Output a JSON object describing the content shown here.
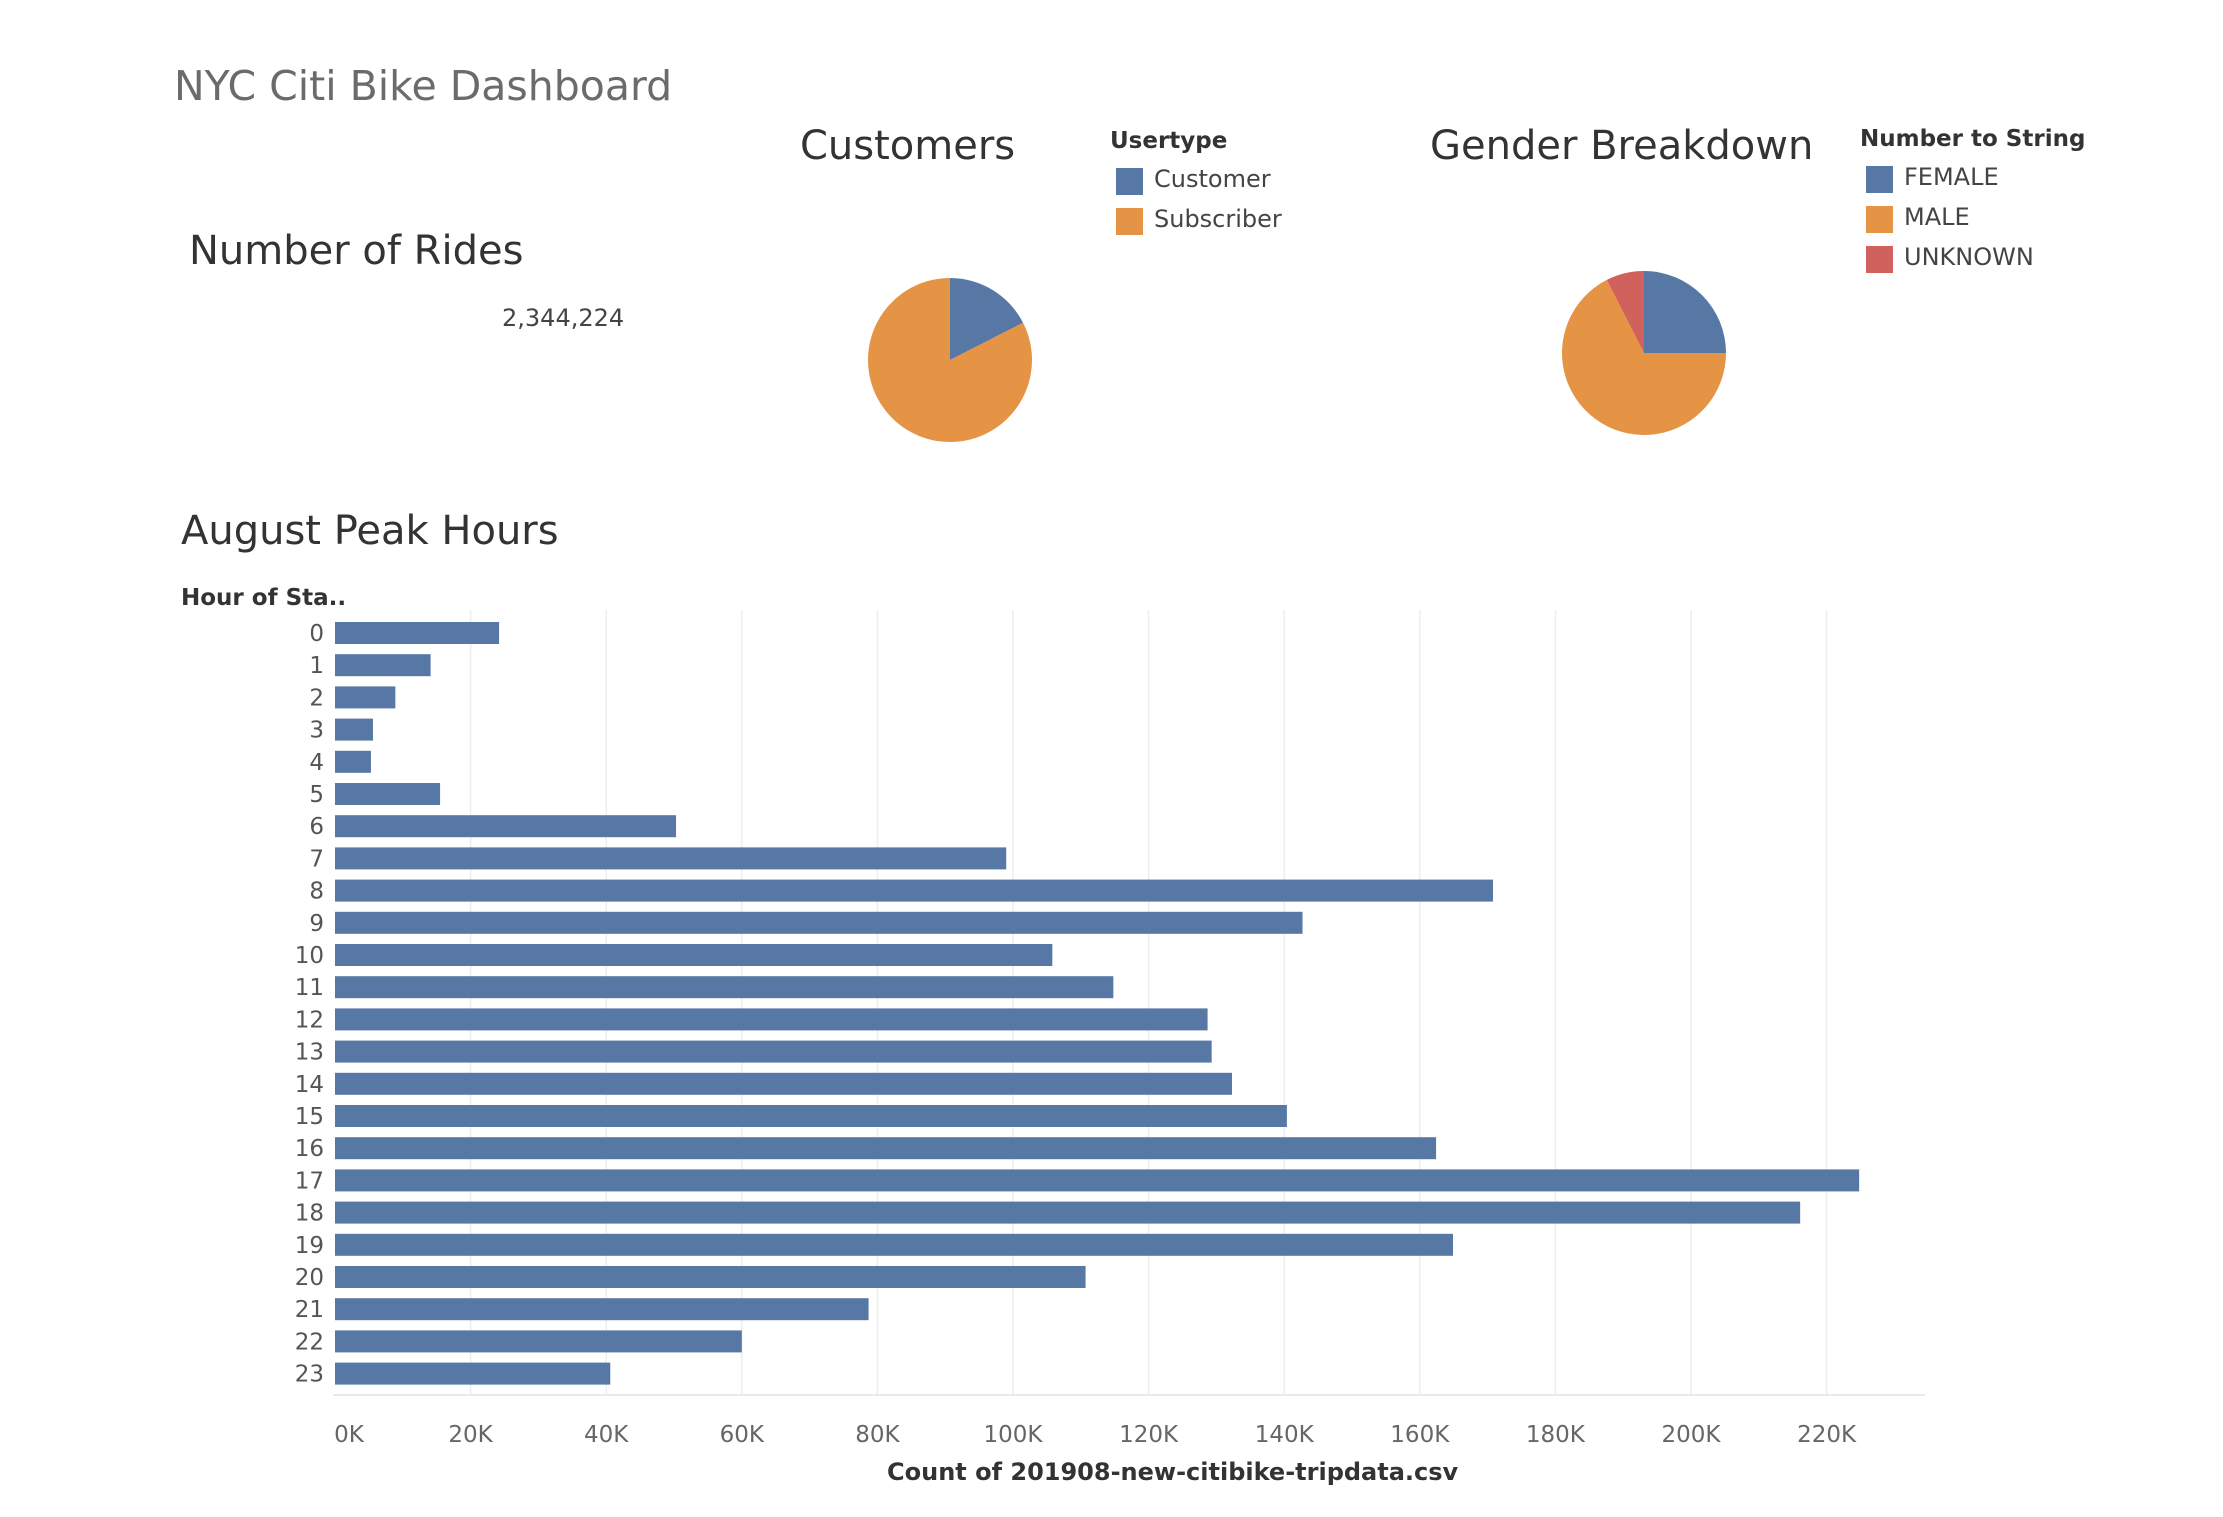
{
  "dashboard": {
    "title": "NYC Citi Bike Dashboard"
  },
  "rides": {
    "title": "Number of Rides",
    "value": "2,344,224"
  },
  "customers": {
    "title": "Customers",
    "legend_title": "Usertype",
    "legend": [
      {
        "label": "Customer",
        "color": "#5778a4"
      },
      {
        "label": "Subscriber",
        "color": "#e49444"
      }
    ]
  },
  "gender": {
    "title": "Gender Breakdown",
    "legend_title": "Number to String",
    "legend": [
      {
        "label": "FEMALE",
        "color": "#5778a4"
      },
      {
        "label": "MALE",
        "color": "#e49444"
      },
      {
        "label": "UNKNOWN",
        "color": "#d1615d"
      }
    ]
  },
  "peak": {
    "title": "August Peak Hours",
    "row_header": "Hour of Sta..",
    "xlabel": "Count of 201908-new-citibike-tripdata.csv"
  },
  "chart_data": [
    {
      "type": "pie",
      "title": "Customers",
      "legend_title": "Usertype",
      "categories": [
        "Customer",
        "Subscriber"
      ],
      "values": [
        17.5,
        82.5
      ],
      "colors": [
        "#5778a4",
        "#e49444"
      ]
    },
    {
      "type": "pie",
      "title": "Gender Breakdown",
      "legend_title": "Number to String",
      "categories": [
        "FEMALE",
        "MALE",
        "UNKNOWN"
      ],
      "values": [
        25,
        67.5,
        7.5
      ],
      "colors": [
        "#5778a4",
        "#e49444",
        "#d1615d"
      ]
    },
    {
      "type": "bar",
      "orientation": "horizontal",
      "title": "August Peak Hours",
      "ylabel": "Hour of Sta..",
      "xlabel": "Count of 201908-new-citibike-tripdata.csv",
      "categories": [
        "0",
        "1",
        "2",
        "3",
        "4",
        "5",
        "6",
        "7",
        "8",
        "9",
        "10",
        "11",
        "12",
        "13",
        "14",
        "15",
        "16",
        "17",
        "18",
        "19",
        "20",
        "21",
        "22",
        "23"
      ],
      "values": [
        24200,
        14100,
        8900,
        5600,
        5300,
        15500,
        50300,
        99000,
        170800,
        142700,
        105800,
        114800,
        128700,
        129300,
        132300,
        140400,
        162400,
        224800,
        216100,
        164900,
        110700,
        78700,
        60000,
        40600
      ],
      "xlim": [
        0,
        235000
      ],
      "xticks": [
        0,
        20000,
        40000,
        60000,
        80000,
        100000,
        120000,
        140000,
        160000,
        180000,
        200000,
        220000
      ],
      "xtick_labels": [
        "0K",
        "20K",
        "40K",
        "60K",
        "80K",
        "100K",
        "120K",
        "140K",
        "160K",
        "180K",
        "200K",
        "220K"
      ],
      "color": "#5778a4",
      "grid": true
    }
  ]
}
